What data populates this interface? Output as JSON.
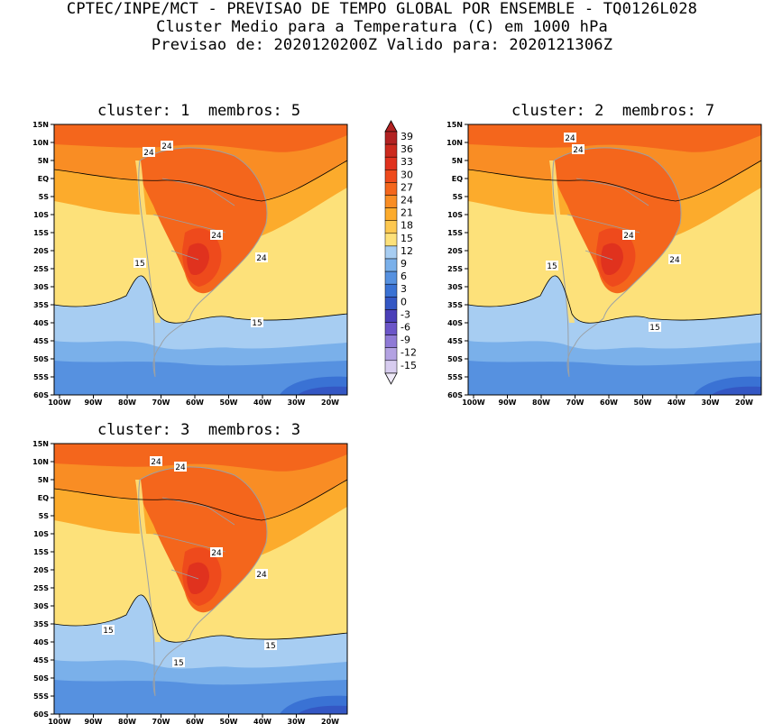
{
  "header": {
    "line1": "CPTEC/INPE/MCT - PREVISAO DE TEMPO GLOBAL POR ENSEMBLE - TQ0126L028",
    "line2": "Cluster Medio para a Temperatura (C) em 1000 hPa",
    "line3": "Previsao de: 2020120200Z   Valido para: 2020121306Z"
  },
  "panels": [
    {
      "title": "cluster: 1  membros: 5"
    },
    {
      "title": "cluster: 2  membros: 7"
    },
    {
      "title": "cluster: 3  membros: 3"
    }
  ],
  "axes": {
    "lat_labels": [
      "15N",
      "10N",
      "5N",
      "EQ",
      "5S",
      "10S",
      "15S",
      "20S",
      "25S",
      "30S",
      "35S",
      "40S",
      "45S",
      "50S",
      "55S",
      "60S"
    ],
    "lon_labels": [
      "100W",
      "90W",
      "80W",
      "70W",
      "60W",
      "50W",
      "40W",
      "30W",
      "20W"
    ]
  },
  "contour_labels": {
    "p1": [
      "24",
      "24",
      "24",
      "24",
      "15",
      "15"
    ],
    "p2": [
      "24",
      "24",
      "24",
      "24",
      "15",
      "15"
    ],
    "p3": [
      "24",
      "24",
      "24",
      "24",
      "15",
      "15",
      "15"
    ]
  },
  "colorbar": {
    "labels": [
      "39",
      "36",
      "33",
      "30",
      "27",
      "24",
      "21",
      "18",
      "15",
      "12",
      "9",
      "6",
      "3",
      "0",
      "-3",
      "-6",
      "-9",
      "-12",
      "-15"
    ],
    "colors": [
      "#b22222",
      "#cc2a1e",
      "#e0321e",
      "#ee4a1c",
      "#f4661c",
      "#f98d24",
      "#fcab2c",
      "#fdc850",
      "#fde17a",
      "#a7cdf2",
      "#7ab0ea",
      "#5691e0",
      "#3a72d4",
      "#3457c4",
      "#4a3fb8",
      "#6b55c8",
      "#8f7ad6",
      "#b3a2e2",
      "#d7ccef"
    ]
  }
}
